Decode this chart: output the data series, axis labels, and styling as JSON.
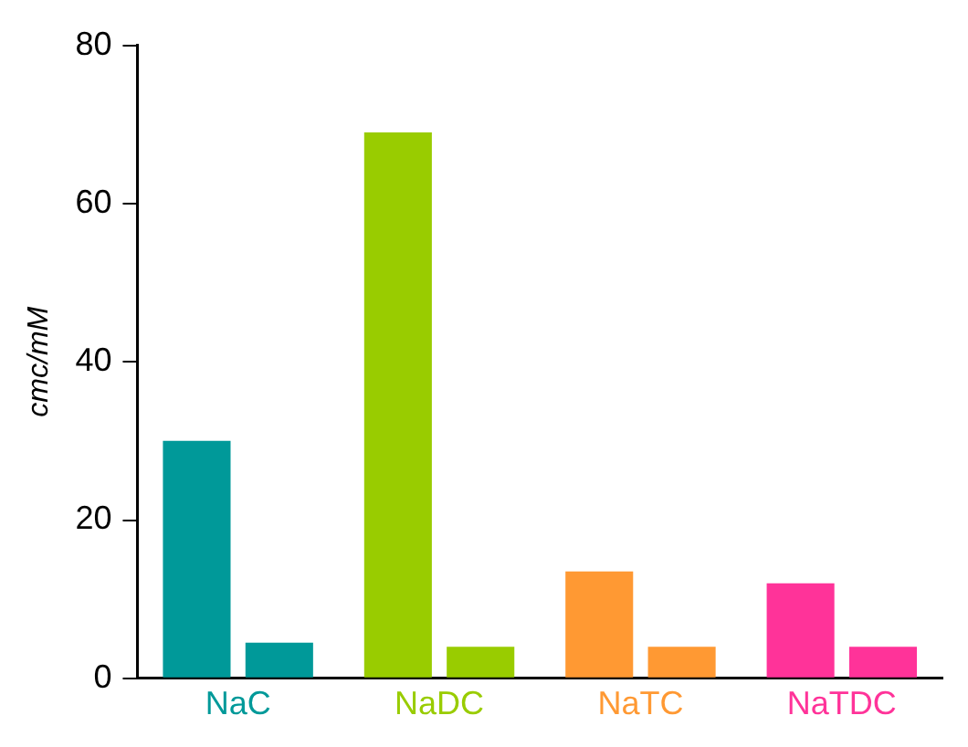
{
  "chart_data": {
    "type": "bar",
    "ylabel": "cmc/mM",
    "categories": [
      "NaC",
      "NaDC",
      "NaTC",
      "NaTDC"
    ],
    "series": [
      {
        "colors": [
          "#009999",
          "#99cc00",
          "#ff9933",
          "#ff3399"
        ],
        "values": [
          30,
          69,
          13.5,
          12
        ]
      },
      {
        "colors": [
          "#009999",
          "#99cc00",
          "#ff9933",
          "#ff3399"
        ],
        "values": [
          4.5,
          4,
          4,
          4
        ]
      }
    ],
    "ylim": [
      0,
      80
    ],
    "yticks": [
      0,
      20,
      40,
      60,
      80
    ],
    "grid": false,
    "legend": false
  }
}
